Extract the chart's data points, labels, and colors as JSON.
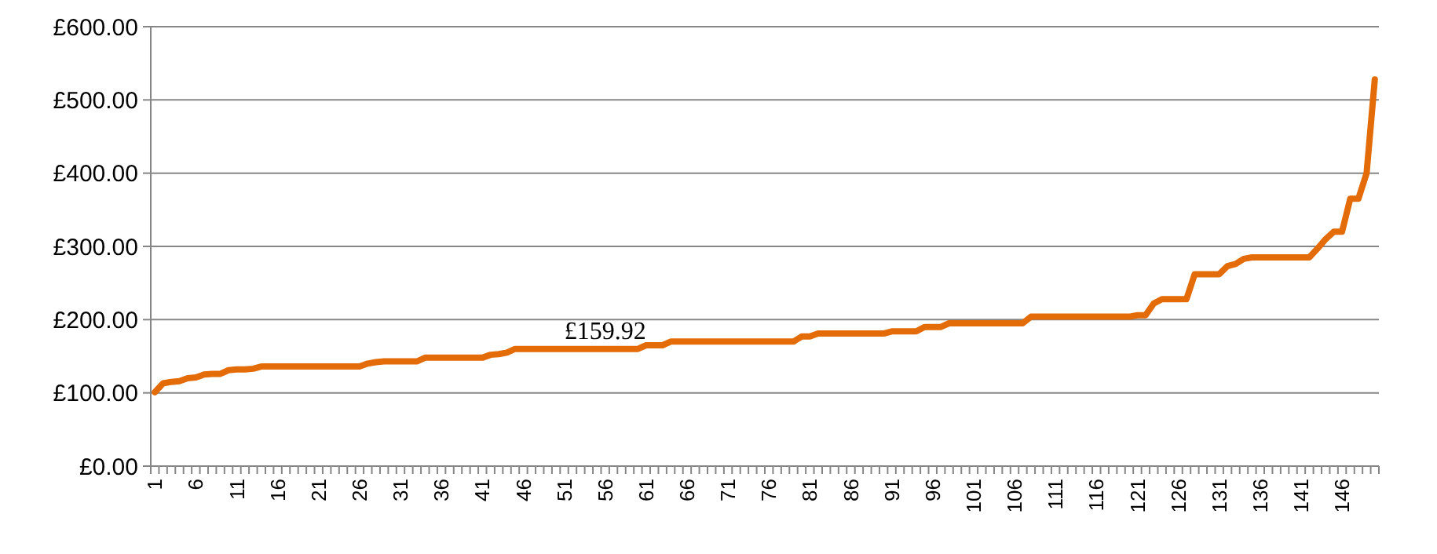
{
  "chart_data": {
    "type": "line",
    "categories": [
      "1",
      null,
      null,
      null,
      null,
      "6",
      null,
      null,
      null,
      null,
      "11",
      null,
      null,
      null,
      null,
      "16",
      null,
      null,
      null,
      null,
      "21",
      null,
      null,
      null,
      null,
      "26",
      null,
      null,
      null,
      null,
      "31",
      null,
      null,
      null,
      null,
      "36",
      null,
      null,
      null,
      null,
      "41",
      null,
      null,
      null,
      null,
      "46",
      null,
      null,
      null,
      null,
      "51",
      null,
      null,
      null,
      null,
      "56",
      null,
      null,
      null,
      null,
      "61",
      null,
      null,
      null,
      null,
      "66",
      null,
      null,
      null,
      null,
      "71",
      null,
      null,
      null,
      null,
      "76",
      null,
      null,
      null,
      null,
      "81",
      null,
      null,
      null,
      null,
      "86",
      null,
      null,
      null,
      null,
      "91",
      null,
      null,
      null,
      null,
      "96",
      null,
      null,
      null,
      null,
      "101",
      null,
      null,
      null,
      null,
      "106",
      null,
      null,
      null,
      null,
      "111",
      null,
      null,
      null,
      null,
      "116",
      null,
      null,
      null,
      null,
      "121",
      null,
      null,
      null,
      null,
      "126",
      null,
      null,
      null,
      null,
      "131",
      null,
      null,
      null,
      null,
      "136",
      null,
      null,
      null,
      null,
      "141",
      null,
      null,
      null,
      null,
      "146",
      null,
      null,
      null,
      null
    ],
    "series": [
      {
        "color": "#e36c09",
        "values": [
          101,
          113,
          115,
          116,
          120,
          121,
          125,
          126,
          126,
          131,
          132,
          132,
          133,
          136,
          136,
          136,
          136,
          136,
          136,
          136,
          136,
          136,
          136,
          136,
          136,
          136,
          140,
          142,
          143,
          143,
          143,
          143,
          143,
          148,
          148,
          148,
          148,
          148,
          148,
          148,
          148,
          152,
          153,
          155,
          160,
          160,
          160,
          160,
          160,
          160,
          160,
          160,
          160,
          160,
          160,
          160,
          160,
          160,
          160,
          160,
          165,
          165,
          165,
          170,
          170,
          170,
          170,
          170,
          170,
          170,
          170,
          170,
          170,
          170,
          170,
          170,
          170,
          170,
          170,
          177,
          177,
          181,
          181,
          181,
          181,
          181,
          181,
          181,
          181,
          181,
          184,
          184,
          184,
          184,
          190,
          190,
          190,
          195,
          195,
          195,
          195,
          195,
          195,
          195,
          195,
          195,
          195,
          204,
          204,
          204,
          204,
          204,
          204,
          204,
          204,
          204,
          204,
          204,
          204,
          204,
          206,
          206,
          222,
          228,
          228,
          228,
          228,
          262,
          262,
          262,
          262,
          273,
          276,
          283,
          285,
          285,
          285,
          285,
          285,
          285,
          285,
          285,
          297,
          310,
          320,
          320,
          365,
          365,
          400,
          528
        ]
      }
    ],
    "ylim": [
      0,
      600
    ],
    "yticks": [
      {
        "value": 0,
        "label": "£0.00"
      },
      {
        "value": 100,
        "label": "£100.00"
      },
      {
        "value": 200,
        "label": "£200.00"
      },
      {
        "value": 300,
        "label": "£300.00"
      },
      {
        "value": 400,
        "label": "£400.00"
      },
      {
        "value": 500,
        "label": "£500.00"
      },
      {
        "value": 600,
        "label": "£600.00"
      }
    ],
    "annotations": [
      {
        "text": "£159.92",
        "x": "56",
        "y": 160
      }
    ],
    "grid": "y",
    "marker": "none",
    "line_style": "solid"
  }
}
